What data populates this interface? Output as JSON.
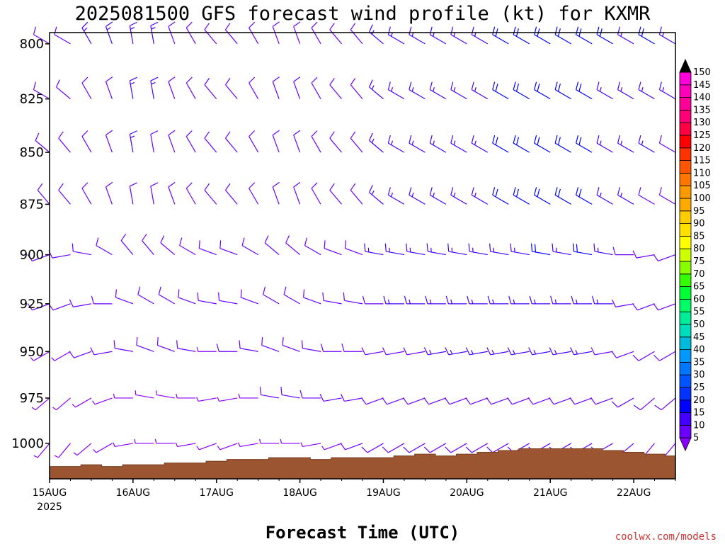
{
  "title": "2025081500 GFS forecast wind profile (kt) for KXMR",
  "xlabel": "Forecast Time (UTC)",
  "credit": "coolwx.com/models",
  "chart_data": {
    "type": "wind-barb-time-height",
    "y_axis": {
      "label": "",
      "scale": "log-pressure",
      "inverted": true,
      "lim": [
        795,
        1020
      ],
      "ticks": [
        800,
        825,
        850,
        875,
        900,
        925,
        950,
        975,
        1000
      ],
      "tick_labels": [
        "800",
        "825",
        "850",
        "875",
        "900",
        "925",
        "950",
        "975",
        "1000"
      ]
    },
    "x_axis": {
      "label": "Forecast Time (UTC)",
      "lim_hours": [
        0,
        180
      ],
      "ticks_hours": [
        0,
        24,
        48,
        72,
        96,
        120,
        144,
        168
      ],
      "tick_labels": [
        "15AUG",
        "16AUG",
        "17AUG",
        "18AUG",
        "19AUG",
        "20AUG",
        "21AUG",
        "22AUG"
      ],
      "first_tick_sublabel": "2025"
    },
    "time_step_hours": 6,
    "levels_hpa": [
      800,
      825,
      850,
      875,
      900,
      925,
      950,
      975,
      1000
    ],
    "colorbar": {
      "unit": "kt",
      "labels": [
        "5",
        "10",
        "15",
        "20",
        "25",
        "30",
        "35",
        "40",
        "45",
        "50",
        "55",
        "60",
        "65",
        "70",
        "75",
        "80",
        "85",
        "90",
        "95",
        "100",
        "105",
        "110",
        "115",
        "120",
        "125",
        "130",
        "135",
        "140",
        "145",
        "150"
      ],
      "colors": [
        "#8800ff",
        "#6a00ff",
        "#4400ff",
        "#0000ff",
        "#0033ff",
        "#0055ff",
        "#0077ff",
        "#0099ff",
        "#00bbdd",
        "#00ddbb",
        "#00ee99",
        "#00ff66",
        "#00ff33",
        "#33ff00",
        "#88ff00",
        "#ccff00",
        "#ffff00",
        "#ffe000",
        "#ffcc00",
        "#ffaa00",
        "#ff9900",
        "#ff7700",
        "#ff5500",
        "#ff3300",
        "#ff0000",
        "#ff0044",
        "#ff0077",
        "#ff0099",
        "#ff00bb",
        "#ff00dd"
      ]
    },
    "wind_barbs": {
      "speed_kt": [
        [
          12,
          12,
          14,
          14,
          16,
          14,
          12,
          10,
          10,
          10,
          12,
          12,
          10,
          10,
          12,
          12,
          14,
          16,
          14,
          16,
          16,
          16,
          18,
          18,
          20,
          18,
          20,
          18,
          16,
          18,
          16
        ],
        [
          10,
          10,
          12,
          12,
          14,
          14,
          12,
          10,
          10,
          10,
          12,
          10,
          10,
          10,
          12,
          12,
          14,
          14,
          16,
          16,
          16,
          16,
          18,
          18,
          20,
          18,
          20,
          16,
          16,
          16,
          14
        ],
        [
          10,
          10,
          10,
          12,
          14,
          12,
          12,
          10,
          10,
          10,
          10,
          10,
          10,
          10,
          12,
          12,
          14,
          14,
          16,
          16,
          16,
          16,
          18,
          18,
          20,
          18,
          20,
          16,
          14,
          14,
          12
        ],
        [
          10,
          10,
          10,
          12,
          12,
          12,
          10,
          10,
          8,
          10,
          10,
          10,
          10,
          10,
          12,
          12,
          14,
          14,
          16,
          16,
          16,
          16,
          18,
          18,
          18,
          18,
          18,
          16,
          14,
          12,
          12
        ],
        [
          8,
          8,
          10,
          10,
          12,
          12,
          10,
          10,
          8,
          8,
          10,
          10,
          10,
          10,
          12,
          12,
          14,
          14,
          14,
          16,
          16,
          16,
          16,
          16,
          18,
          16,
          18,
          14,
          12,
          12,
          10
        ],
        [
          8,
          8,
          8,
          10,
          10,
          10,
          10,
          8,
          8,
          8,
          10,
          10,
          10,
          10,
          10,
          12,
          12,
          14,
          14,
          14,
          14,
          14,
          16,
          16,
          16,
          16,
          16,
          14,
          12,
          10,
          10
        ],
        [
          6,
          6,
          8,
          8,
          8,
          8,
          8,
          8,
          6,
          8,
          8,
          8,
          8,
          10,
          10,
          10,
          12,
          12,
          12,
          14,
          14,
          14,
          14,
          14,
          14,
          14,
          14,
          12,
          10,
          10,
          8
        ],
        [
          6,
          6,
          6,
          6,
          6,
          6,
          6,
          6,
          6,
          6,
          6,
          8,
          8,
          8,
          8,
          10,
          10,
          10,
          12,
          12,
          12,
          12,
          12,
          12,
          12,
          12,
          12,
          10,
          10,
          8,
          8
        ],
        [
          5,
          5,
          5,
          5,
          5,
          5,
          5,
          5,
          5,
          5,
          5,
          6,
          6,
          6,
          6,
          8,
          8,
          8,
          8,
          10,
          10,
          10,
          10,
          10,
          10,
          10,
          10,
          8,
          8,
          6,
          6
        ]
      ],
      "direction_deg": [
        [
          300,
          300,
          330,
          340,
          350,
          350,
          340,
          330,
          320,
          320,
          330,
          340,
          340,
          330,
          320,
          320,
          310,
          300,
          300,
          300,
          300,
          300,
          300,
          300,
          300,
          300,
          300,
          300,
          300,
          300,
          300
        ],
        [
          300,
          310,
          330,
          340,
          350,
          350,
          340,
          330,
          320,
          320,
          330,
          340,
          340,
          330,
          320,
          320,
          310,
          300,
          300,
          300,
          300,
          300,
          300,
          300,
          300,
          300,
          300,
          300,
          300,
          300,
          300
        ],
        [
          310,
          320,
          330,
          340,
          350,
          350,
          340,
          330,
          320,
          320,
          330,
          340,
          340,
          330,
          320,
          320,
          310,
          300,
          300,
          300,
          300,
          300,
          300,
          300,
          300,
          300,
          300,
          300,
          300,
          300,
          300
        ],
        [
          320,
          320,
          330,
          340,
          350,
          350,
          340,
          330,
          320,
          320,
          330,
          340,
          340,
          330,
          320,
          320,
          310,
          300,
          300,
          300,
          300,
          300,
          300,
          300,
          300,
          300,
          300,
          300,
          300,
          300,
          300
        ],
        [
          250,
          260,
          280,
          300,
          320,
          320,
          310,
          300,
          290,
          290,
          300,
          310,
          310,
          300,
          290,
          290,
          280,
          280,
          280,
          280,
          280,
          280,
          280,
          280,
          280,
          280,
          280,
          280,
          270,
          260,
          250
        ],
        [
          250,
          250,
          260,
          270,
          290,
          300,
          300,
          290,
          280,
          280,
          290,
          300,
          300,
          290,
          280,
          280,
          270,
          270,
          270,
          270,
          270,
          270,
          270,
          270,
          270,
          270,
          270,
          270,
          260,
          250,
          250
        ],
        [
          240,
          240,
          250,
          260,
          280,
          290,
          290,
          280,
          270,
          270,
          280,
          290,
          290,
          280,
          270,
          270,
          260,
          260,
          260,
          260,
          260,
          260,
          260,
          260,
          260,
          260,
          260,
          260,
          250,
          240,
          240
        ],
        [
          230,
          230,
          240,
          250,
          270,
          280,
          280,
          270,
          260,
          260,
          270,
          280,
          280,
          270,
          260,
          260,
          250,
          250,
          250,
          250,
          250,
          250,
          250,
          250,
          250,
          250,
          250,
          250,
          240,
          230,
          230
        ],
        [
          220,
          220,
          230,
          240,
          260,
          270,
          270,
          260,
          250,
          250,
          260,
          270,
          270,
          260,
          250,
          250,
          240,
          240,
          240,
          240,
          240,
          240,
          240,
          240,
          240,
          240,
          240,
          240,
          230,
          220,
          220
        ]
      ]
    },
    "surface_pressure_hpa": [
      1013,
      1013,
      1012,
      1013,
      1012,
      1012,
      1011,
      1011,
      1010,
      1009,
      1009,
      1008,
      1008,
      1009,
      1008,
      1008,
      1008,
      1007,
      1006,
      1007,
      1006,
      1005,
      1004,
      1003,
      1003,
      1003,
      1003,
      1004,
      1005,
      1006,
      1007
    ]
  },
  "colors": {
    "terrain": "#9b5530",
    "terrain_edge": "#7a3f20",
    "credit": "#cc3333"
  }
}
